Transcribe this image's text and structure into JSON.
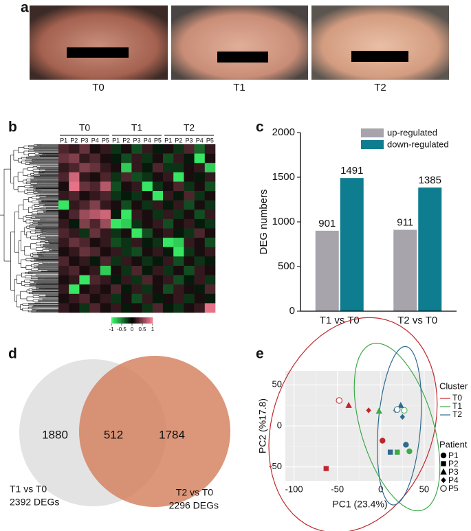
{
  "figure": {
    "panel_labels": [
      "a",
      "b",
      "c",
      "d",
      "e"
    ],
    "photo_captions": [
      "T0",
      "T1",
      "T2"
    ]
  },
  "chart_data": [
    {
      "type": "heatmap",
      "groups": [
        "T0",
        "T1",
        "T2"
      ],
      "columns": [
        "P1",
        "P2",
        "P3",
        "P4",
        "P5",
        "P1",
        "P2",
        "P3",
        "P4",
        "P5",
        "P1",
        "P2",
        "P3",
        "P4",
        "P5"
      ],
      "values": [
        [
          0.3,
          0.2,
          0.4,
          0.1,
          0.2,
          -0.2,
          0.1,
          -0.3,
          0.2,
          -0.1,
          0.1,
          -0.2,
          0.3,
          -0.4,
          0.2
        ],
        [
          0.4,
          0.5,
          0.2,
          0.3,
          0.1,
          -0.1,
          -0.3,
          0.2,
          -0.2,
          0.1,
          -0.3,
          0.2,
          -0.1,
          -0.9,
          0.1
        ],
        [
          0.2,
          0.3,
          0.5,
          0.4,
          0.2,
          0.1,
          -0.8,
          0.2,
          -0.1,
          0.3,
          -0.2,
          -0.2,
          0.1,
          0.2,
          -0.8
        ],
        [
          0.3,
          0.8,
          0.2,
          0.1,
          0.3,
          -0.2,
          0.3,
          -0.3,
          -0.2,
          0.1,
          0.2,
          -0.9,
          0.1,
          -0.1,
          0.2
        ],
        [
          0.1,
          0.9,
          0.4,
          0.3,
          0.7,
          -0.3,
          0.1,
          0.2,
          -0.9,
          -0.2,
          0.1,
          0.3,
          -0.2,
          0.1,
          -0.3
        ],
        [
          0.2,
          0.3,
          0.1,
          0.2,
          0.3,
          -0.2,
          -0.1,
          -0.2,
          0.1,
          -0.9,
          0.2,
          -0.1,
          0.3,
          -0.2,
          0.1
        ],
        [
          -0.9,
          0.2,
          0.3,
          0.5,
          0.2,
          0.1,
          -0.3,
          0.1,
          -0.2,
          0.2,
          -0.1,
          0.2,
          -0.3,
          0.1,
          -0.2
        ],
        [
          0.1,
          0.3,
          0.6,
          0.7,
          0.8,
          -0.1,
          -0.9,
          0.2,
          0.1,
          -0.2,
          0.2,
          -0.2,
          0.1,
          -0.3,
          0.2
        ],
        [
          0.2,
          -0.1,
          0.5,
          0.3,
          0.6,
          -0.9,
          -0.8,
          -0.2,
          0.1,
          0.2,
          -0.3,
          0.1,
          0.2,
          -0.1,
          -0.2
        ],
        [
          0.3,
          0.2,
          -0.2,
          0.4,
          0.2,
          -0.2,
          0.1,
          -0.9,
          -0.3,
          0.1,
          0.2,
          -0.1,
          -0.2,
          0.3,
          0.1
        ],
        [
          0.2,
          0.4,
          0.3,
          0.1,
          0.2,
          -0.3,
          -0.2,
          0.2,
          -0.1,
          -0.2,
          -0.9,
          -0.8,
          0.2,
          0.1,
          -0.3
        ],
        [
          0.1,
          0.2,
          0.4,
          0.3,
          0.1,
          0.2,
          -0.2,
          -0.3,
          0.1,
          0.2,
          -0.1,
          -0.9,
          -0.2,
          0.1,
          0.2
        ],
        [
          0.3,
          0.1,
          0.2,
          -0.1,
          0.3,
          -0.2,
          0.2,
          0.1,
          -0.2,
          -0.1,
          0.2,
          -0.3,
          0.1,
          -0.2,
          -0.1
        ],
        [
          0.2,
          0.3,
          0.1,
          0.2,
          -0.8,
          0.1,
          -0.2,
          0.3,
          -0.1,
          0.2,
          -0.2,
          0.1,
          -0.3,
          0.2,
          0.1
        ],
        [
          0.1,
          0.2,
          -0.9,
          0.3,
          0.2,
          -0.1,
          0.2,
          -0.2,
          0.3,
          0.1,
          0.2,
          -0.3,
          -0.1,
          0.2,
          -0.2
        ],
        [
          0.2,
          -0.9,
          0.1,
          0.2,
          0.1,
          0.3,
          -0.1,
          0.2,
          -0.2,
          0.1,
          -0.3,
          0.2,
          0.1,
          -0.1,
          0.3
        ],
        [
          0.1,
          0.2,
          0.3,
          0.1,
          0.2,
          -0.2,
          0.1,
          -0.3,
          0.2,
          -0.1,
          0.1,
          0.2,
          -0.2,
          0.1,
          -0.1
        ],
        [
          0.2,
          0.1,
          -0.2,
          0.3,
          0.1,
          0.2,
          -0.1,
          0.1,
          -0.2,
          0.3,
          -0.1,
          -0.2,
          0.1,
          0.2,
          0.9
        ]
      ],
      "colors": [
        "#3dff6e",
        "#000000",
        "#ff7f96"
      ],
      "clim": [
        -1,
        1
      ],
      "colorbar_ticks": [
        -1,
        -0.5,
        0,
        0.5,
        1
      ]
    },
    {
      "type": "bar",
      "ylabel": "DEG numbers",
      "categories": [
        "T1 vs T0",
        "T2 vs T0"
      ],
      "series": [
        {
          "name": "up-regulated",
          "color": "#a7a5ab",
          "values": [
            901,
            911
          ]
        },
        {
          "name": "down-regulated",
          "color": "#0e7d8f",
          "values": [
            1491,
            1385
          ]
        }
      ],
      "ylim": [
        0,
        2000
      ],
      "yticks": [
        0,
        500,
        1000,
        1500,
        2000
      ],
      "legend": "top-right"
    },
    {
      "type": "venn",
      "sets": [
        {
          "name": "T1 vs T0",
          "total": {
            "value": 2392,
            "label": "2392 DEGs"
          },
          "color": "#e3e3e3"
        },
        {
          "name": "T2 vs T0",
          "total": {
            "value": 2296,
            "label": "2296 DEGs"
          },
          "color": "#d47f5c"
        }
      ],
      "regions": [
        1880,
        512,
        1784
      ]
    },
    {
      "type": "scatter",
      "xlabel": "PC1 (23.4%)",
      "ylabel": "PC2 (%17.8)",
      "xlim": [
        -110,
        62
      ],
      "ylim": [
        -67,
        67
      ],
      "xticks": [
        -100,
        -50,
        0,
        50
      ],
      "yticks": [
        -50,
        0,
        50
      ],
      "grid": true,
      "legend_title": "Cluster",
      "marker_legend_title": "Patient",
      "markers": [
        {
          "name": "P1",
          "shape": "circle"
        },
        {
          "name": "P2",
          "shape": "square"
        },
        {
          "name": "P3",
          "shape": "triangle"
        },
        {
          "name": "P4",
          "shape": "diamond"
        },
        {
          "name": "P5",
          "shape": "open-circle"
        }
      ],
      "series": [
        {
          "name": "T0",
          "color": "#c0272d",
          "x": [
            2,
            -63,
            -37,
            -14,
            -48
          ],
          "y": [
            -18,
            -52,
            25,
            19,
            31
          ]
        },
        {
          "name": "T1",
          "color": "#3daa47",
          "x": [
            33,
            19,
            -2,
            17,
            27
          ],
          "y": [
            -31,
            -32,
            18,
            19,
            19
          ]
        },
        {
          "name": "T2",
          "color": "#2e6a8f",
          "x": [
            29,
            11,
            23,
            25,
            19
          ],
          "y": [
            -23,
            -32,
            25,
            11,
            20
          ]
        }
      ],
      "ellipses": true
    }
  ]
}
